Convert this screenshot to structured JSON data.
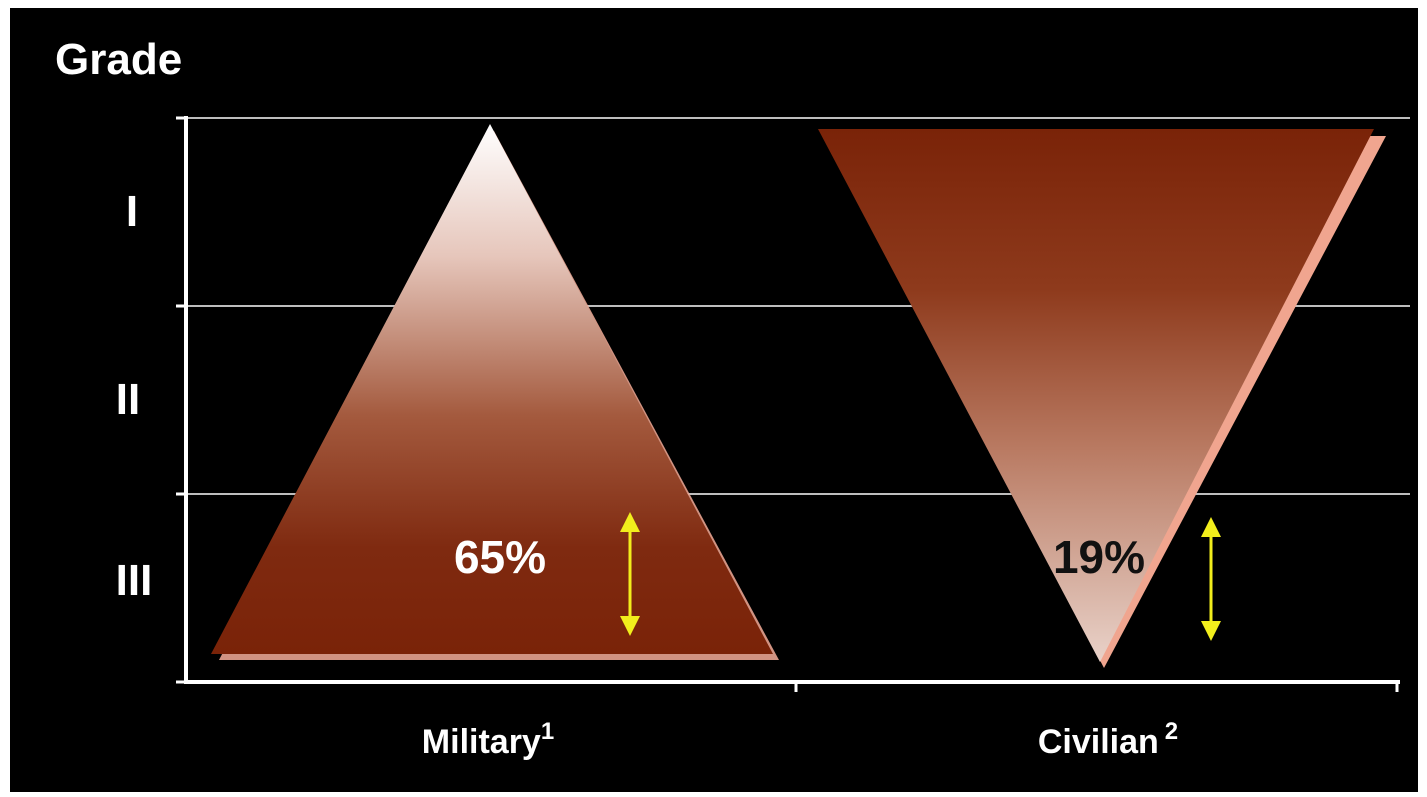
{
  "axis": {
    "title": "Grade",
    "levels": [
      "I",
      "II",
      "III"
    ]
  },
  "groups": [
    {
      "label": "Military",
      "sup": "1",
      "percent_label": "65%",
      "shape": "pyramid-upright"
    },
    {
      "label": "Civilian",
      "sup": "2",
      "percent_label": "19%",
      "shape": "pyramid-inverted"
    }
  ],
  "colors": {
    "background": "#000000",
    "triangle_dark": "#7a2308",
    "triangle_light": "#ffffff",
    "gridline": "#bdbdbd",
    "arrow": "#f2ee1c",
    "label_text": "#ffffff",
    "percent_military": "#ffffff",
    "percent_civilian": "#111111"
  }
}
